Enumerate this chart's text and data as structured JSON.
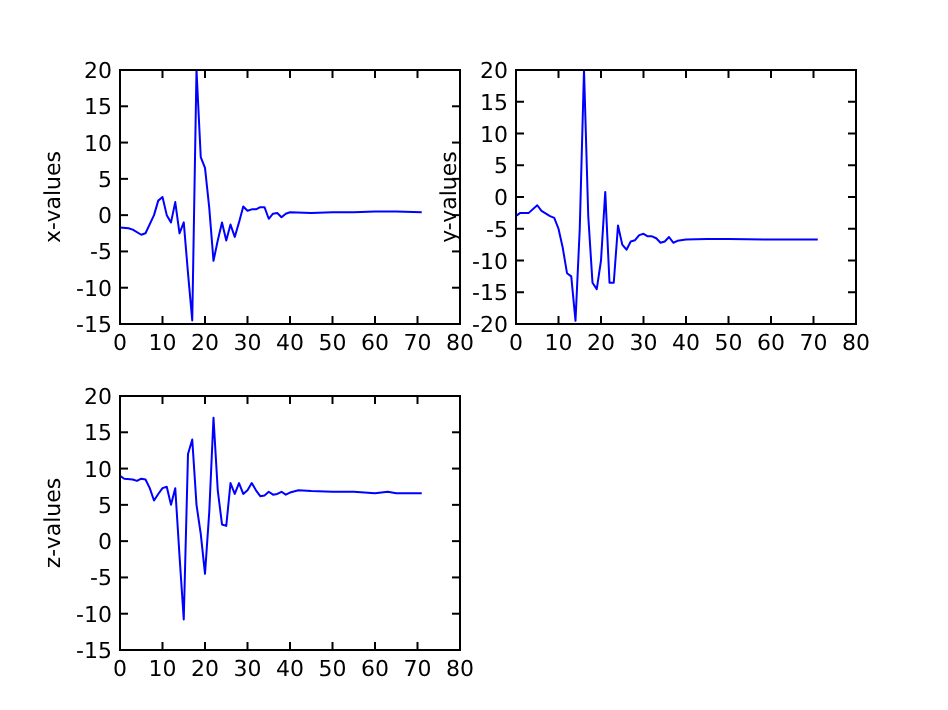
{
  "chart_data": [
    {
      "type": "line",
      "ylabel": "x-values",
      "xlim": [
        0,
        80
      ],
      "ylim": [
        -15,
        20
      ],
      "xticks": [
        0,
        10,
        20,
        30,
        40,
        50,
        60,
        70,
        80
      ],
      "yticks": [
        -15,
        -10,
        -5,
        0,
        5,
        10,
        15,
        20
      ],
      "grid": false,
      "series": [
        {
          "color": "#0000ff",
          "x": [
            0,
            2,
            3,
            5,
            6,
            8,
            9,
            10,
            11,
            12,
            13,
            14,
            15,
            16,
            17,
            18,
            19,
            20,
            21,
            22,
            23,
            24,
            25,
            26,
            27,
            28,
            29,
            30,
            31,
            32,
            33,
            34,
            35,
            36,
            37,
            38,
            39,
            40,
            45,
            50,
            55,
            60,
            65,
            71
          ],
          "values": [
            -1.7,
            -1.8,
            -2,
            -2.7,
            -2.5,
            0,
            2,
            2.5,
            0,
            -1,
            1.8,
            -2.5,
            -1,
            -8,
            -14.5,
            20,
            8,
            6.5,
            1,
            -6.3,
            -3.5,
            -1,
            -3.5,
            -1.3,
            -3,
            -1,
            1.2,
            0.6,
            0.8,
            0.8,
            1.1,
            1.1,
            -0.5,
            0.2,
            0.3,
            -0.3,
            0.2,
            0.4,
            0.3,
            0.4,
            0.4,
            0.5,
            0.5,
            0.4
          ]
        }
      ]
    },
    {
      "type": "line",
      "ylabel": "y-values",
      "xlim": [
        0,
        80
      ],
      "ylim": [
        -20,
        20
      ],
      "xticks": [
        0,
        10,
        20,
        30,
        40,
        50,
        60,
        70,
        80
      ],
      "yticks": [
        -20,
        -15,
        -10,
        -5,
        0,
        5,
        10,
        15,
        20
      ],
      "grid": false,
      "series": [
        {
          "color": "#0000ff",
          "x": [
            0,
            1,
            3,
            5,
            6,
            8,
            9,
            10,
            11,
            12,
            13,
            14,
            15,
            16,
            17,
            18,
            19,
            20,
            21,
            22,
            23,
            24,
            25,
            26,
            27,
            28,
            29,
            30,
            31,
            32,
            33,
            34,
            35,
            36,
            37,
            38,
            40,
            45,
            50,
            60,
            65,
            71
          ],
          "values": [
            -3,
            -2.5,
            -2.5,
            -1.3,
            -2.2,
            -3,
            -3.3,
            -5,
            -8,
            -12,
            -12.5,
            -19.5,
            -5,
            20,
            -3,
            -13.5,
            -14.5,
            -10,
            0.8,
            -13.5,
            -13.5,
            -4.5,
            -7.5,
            -8.3,
            -7,
            -6.8,
            -6,
            -5.8,
            -6.2,
            -6.2,
            -6.5,
            -7.2,
            -7,
            -6.3,
            -7.2,
            -6.9,
            -6.7,
            -6.6,
            -6.6,
            -6.7,
            -6.7,
            -6.7
          ]
        }
      ]
    },
    {
      "type": "line",
      "ylabel": "z-values",
      "xlim": [
        0,
        80
      ],
      "ylim": [
        -15,
        20
      ],
      "xticks": [
        0,
        10,
        20,
        30,
        40,
        50,
        60,
        70,
        80
      ],
      "yticks": [
        -15,
        -10,
        -5,
        0,
        5,
        10,
        15,
        20
      ],
      "grid": false,
      "series": [
        {
          "color": "#0000ff",
          "x": [
            0,
            1,
            3,
            4,
            5,
            6,
            7,
            8,
            9,
            10,
            11,
            12,
            13,
            14,
            15,
            16,
            17,
            18,
            19,
            20,
            21,
            22,
            23,
            24,
            25,
            26,
            27,
            28,
            29,
            30,
            31,
            32,
            33,
            34,
            35,
            36,
            37,
            38,
            39,
            40,
            42,
            45,
            50,
            55,
            60,
            63,
            65,
            71
          ],
          "values": [
            9,
            8.6,
            8.5,
            8.3,
            8.6,
            8.5,
            7.3,
            5.6,
            6.5,
            7.3,
            7.5,
            5,
            7.3,
            -2,
            -10.8,
            12,
            14,
            5,
            1,
            -4.5,
            4,
            17,
            7,
            2.3,
            2.1,
            8,
            6.5,
            8,
            6.5,
            7,
            8,
            7,
            6.2,
            6.3,
            6.8,
            6.4,
            6.5,
            6.8,
            6.4,
            6.7,
            7,
            6.9,
            6.8,
            6.8,
            6.6,
            6.8,
            6.6,
            6.6
          ]
        }
      ]
    }
  ]
}
